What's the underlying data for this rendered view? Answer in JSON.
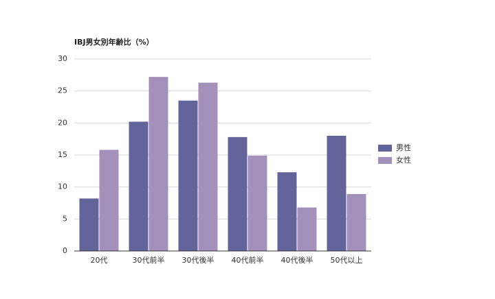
{
  "chart_data": {
    "type": "bar",
    "title": "IBJ男女別年齢比（%）",
    "categories": [
      "20代",
      "30代前半",
      "30代後半",
      "40代前半",
      "40代後半",
      "50代以上"
    ],
    "series": [
      {
        "name": "男性",
        "color": "#63649c",
        "values": [
          8.2,
          20.2,
          23.5,
          17.8,
          12.3,
          18.0
        ]
      },
      {
        "name": "女性",
        "color": "#a391bb",
        "values": [
          15.8,
          27.2,
          26.3,
          14.9,
          6.8,
          8.9
        ]
      }
    ],
    "ylim": [
      0,
      30
    ],
    "yticks": [
      0,
      5,
      10,
      15,
      20,
      25,
      30
    ],
    "grid": true,
    "legend": "right"
  }
}
